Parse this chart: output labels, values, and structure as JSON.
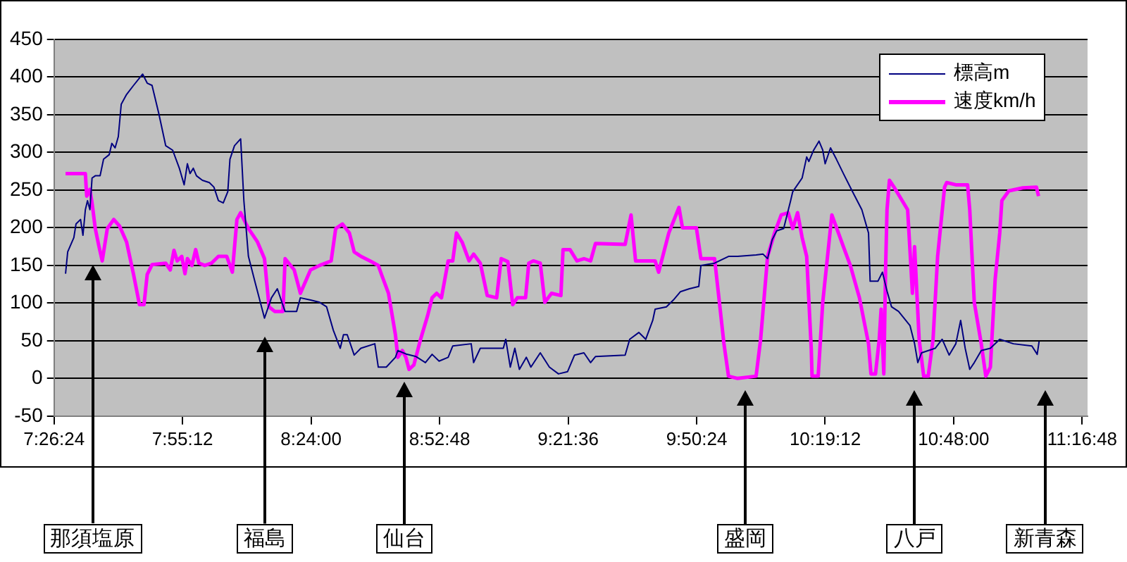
{
  "chart_data": {
    "type": "line",
    "xlim": [
      7.44,
      11.3
    ],
    "xticks": [
      {
        "value": 7.44,
        "label": "7:26:24"
      },
      {
        "value": 7.92,
        "label": "7:55:12"
      },
      {
        "value": 8.4,
        "label": "8:24:00"
      },
      {
        "value": 8.88,
        "label": "8:52:48"
      },
      {
        "value": 9.36,
        "label": "9:21:36"
      },
      {
        "value": 9.84,
        "label": "9:50:24"
      },
      {
        "value": 10.32,
        "label": "10:19:12"
      },
      {
        "value": 10.8,
        "label": "10:48:00"
      },
      {
        "value": 11.28,
        "label": "11:16:48"
      }
    ],
    "ylim": [
      -50,
      450
    ],
    "yticks": [
      -50,
      0,
      50,
      100,
      150,
      200,
      250,
      300,
      350,
      400,
      450
    ],
    "grid": "y",
    "legend": "top right",
    "series": [
      {
        "name": "標高m",
        "color": "#000080",
        "x": [
          7.483,
          7.491,
          7.514,
          7.522,
          7.539,
          7.548,
          7.557,
          7.565,
          7.574,
          7.582,
          7.594,
          7.612,
          7.625,
          7.646,
          7.656,
          7.668,
          7.68,
          7.691,
          7.711,
          7.737,
          7.771,
          7.788,
          7.806,
          7.831,
          7.857,
          7.883,
          7.908,
          7.926,
          7.938,
          7.948,
          7.96,
          7.972,
          7.994,
          8.02,
          8.037,
          8.054,
          8.072,
          8.089,
          8.097,
          8.114,
          8.137,
          8.149,
          8.166,
          8.192,
          8.226,
          8.252,
          8.274,
          8.291,
          8.303,
          8.346,
          8.36,
          8.398,
          8.432,
          8.458,
          8.483,
          8.509,
          8.521,
          8.535,
          8.561,
          8.586,
          8.638,
          8.651,
          8.681,
          8.715,
          8.724,
          8.758,
          8.792,
          8.827,
          8.852,
          8.878,
          8.912,
          8.929,
          8.998,
          9.007,
          9.032,
          9.118,
          9.127,
          9.144,
          9.161,
          9.178,
          9.204,
          9.221,
          9.256,
          9.29,
          9.324,
          9.358,
          9.384,
          9.419,
          9.444,
          9.462,
          9.573,
          9.59,
          9.624,
          9.65,
          9.676,
          9.685,
          9.727,
          9.753,
          9.779,
          9.813,
          9.848,
          9.856,
          9.907,
          9.959,
          9.993,
          10.062,
          10.088,
          10.105,
          10.122,
          10.139,
          10.165,
          10.191,
          10.199,
          10.234,
          10.251,
          10.259,
          10.277,
          10.297,
          10.311,
          10.32,
          10.34,
          10.362,
          10.388,
          10.422,
          10.457,
          10.482,
          10.488,
          10.517,
          10.534,
          10.551,
          10.568,
          10.594,
          10.637,
          10.654,
          10.666,
          10.68,
          10.731,
          10.757,
          10.783,
          10.808,
          10.826,
          10.843,
          10.86,
          10.877,
          10.903,
          10.937,
          10.972,
          11.023,
          11.092,
          11.112,
          11.119
        ],
        "values": [
          139,
          168,
          187,
          205,
          211,
          190,
          224,
          236,
          224,
          266,
          269,
          269,
          291,
          297,
          312,
          306,
          321,
          364,
          377,
          389,
          404,
          392,
          389,
          352,
          309,
          303,
          279,
          257,
          285,
          272,
          279,
          269,
          263,
          260,
          254,
          236,
          233,
          248,
          291,
          309,
          318,
          236,
          162,
          126,
          80,
          107,
          119,
          101,
          89,
          89,
          107,
          104,
          101,
          95,
          64,
          40,
          58,
          58,
          31,
          40,
          46,
          15,
          15,
          28,
          37,
          32,
          29,
          21,
          32,
          23,
          28,
          43,
          46,
          21,
          40,
          40,
          52,
          15,
          40,
          12,
          28,
          15,
          34,
          15,
          6,
          9,
          31,
          34,
          21,
          29,
          31,
          52,
          61,
          52,
          77,
          92,
          95,
          104,
          115,
          119,
          122,
          150,
          153,
          162,
          162,
          164,
          165,
          159,
          184,
          196,
          199,
          236,
          248,
          266,
          294,
          288,
          303,
          315,
          303,
          285,
          306,
          291,
          272,
          248,
          224,
          193,
          129,
          129,
          141,
          116,
          95,
          89,
          70,
          46,
          21,
          34,
          40,
          52,
          31,
          46,
          77,
          40,
          12,
          21,
          37,
          40,
          52,
          46,
          43,
          32,
          49
        ]
      },
      {
        "name": "速度km/h",
        "color": "#ff00ff",
        "x": [
          7.483,
          7.557,
          7.562,
          7.574,
          7.582,
          7.594,
          7.608,
          7.62,
          7.639,
          7.663,
          7.685,
          7.711,
          7.737,
          7.759,
          7.776,
          7.788,
          7.806,
          7.857,
          7.874,
          7.888,
          7.9,
          7.917,
          7.929,
          7.938,
          7.955,
          7.969,
          7.981,
          8.003,
          8.028,
          8.054,
          8.085,
          8.106,
          8.123,
          8.137,
          8.149,
          8.166,
          8.2,
          8.226,
          8.243,
          8.264,
          8.295,
          8.303,
          8.337,
          8.36,
          8.398,
          8.432,
          8.475,
          8.492,
          8.517,
          8.543,
          8.561,
          8.586,
          8.62,
          8.651,
          8.663,
          8.689,
          8.715,
          8.724,
          8.741,
          8.754,
          8.766,
          8.784,
          8.809,
          8.835,
          8.852,
          8.869,
          8.887,
          8.912,
          8.929,
          8.943,
          8.964,
          8.99,
          9.007,
          9.032,
          9.058,
          9.093,
          9.11,
          9.135,
          9.153,
          9.17,
          9.201,
          9.213,
          9.23,
          9.256,
          9.273,
          9.298,
          9.333,
          9.341,
          9.367,
          9.393,
          9.419,
          9.444,
          9.462,
          9.573,
          9.595,
          9.612,
          9.65,
          9.685,
          9.698,
          9.736,
          9.774,
          9.787,
          9.839,
          9.856,
          9.882,
          9.907,
          9.925,
          9.942,
          9.959,
          9.993,
          10.062,
          10.079,
          10.105,
          10.131,
          10.156,
          10.182,
          10.199,
          10.217,
          10.234,
          10.251,
          10.268,
          10.271,
          10.294,
          10.311,
          10.345,
          10.388,
          10.414,
          10.448,
          10.482,
          10.491,
          10.508,
          10.522,
          10.529,
          10.539,
          10.546,
          10.551,
          10.56,
          10.577,
          10.628,
          10.646,
          10.654,
          10.671,
          10.688,
          10.705,
          10.723,
          10.74,
          10.766,
          10.774,
          10.808,
          10.852,
          10.86,
          10.877,
          10.903,
          10.92,
          10.937,
          10.955,
          10.972,
          10.98,
          11.006,
          11.058,
          11.109,
          11.117
        ],
        "values": [
          272,
          272,
          242,
          251,
          233,
          199,
          175,
          156,
          199,
          211,
          202,
          181,
          138,
          98,
          98,
          138,
          151,
          153,
          144,
          170,
          156,
          162,
          139,
          159,
          150,
          171,
          153,
          150,
          153,
          162,
          162,
          141,
          211,
          220,
          211,
          199,
          181,
          159,
          95,
          89,
          89,
          159,
          144,
          113,
          144,
          150,
          156,
          199,
          205,
          193,
          168,
          162,
          156,
          150,
          138,
          113,
          58,
          28,
          37,
          28,
          12,
          18,
          52,
          83,
          107,
          113,
          107,
          156,
          156,
          193,
          181,
          156,
          165,
          153,
          110,
          107,
          159,
          155,
          98,
          107,
          107,
          153,
          156,
          153,
          101,
          113,
          110,
          171,
          171,
          156,
          159,
          156,
          179,
          178,
          217,
          156,
          156,
          156,
          141,
          193,
          227,
          200,
          200,
          159,
          159,
          159,
          101,
          46,
          3,
          0,
          3,
          52,
          162,
          193,
          217,
          220,
          199,
          220,
          187,
          162,
          40,
          3,
          3,
          101,
          217,
          175,
          150,
          107,
          46,
          6,
          6,
          52,
          92,
          6,
          150,
          224,
          263,
          254,
          224,
          113,
          175,
          52,
          3,
          3,
          52,
          162,
          254,
          260,
          257,
          257,
          224,
          101,
          46,
          3,
          15,
          132,
          193,
          236,
          249,
          253,
          254,
          242
        ]
      }
    ],
    "annotations": [
      "那須塩原",
      "福島",
      "仙台",
      "盛岡",
      "八戸",
      "新青森"
    ]
  }
}
